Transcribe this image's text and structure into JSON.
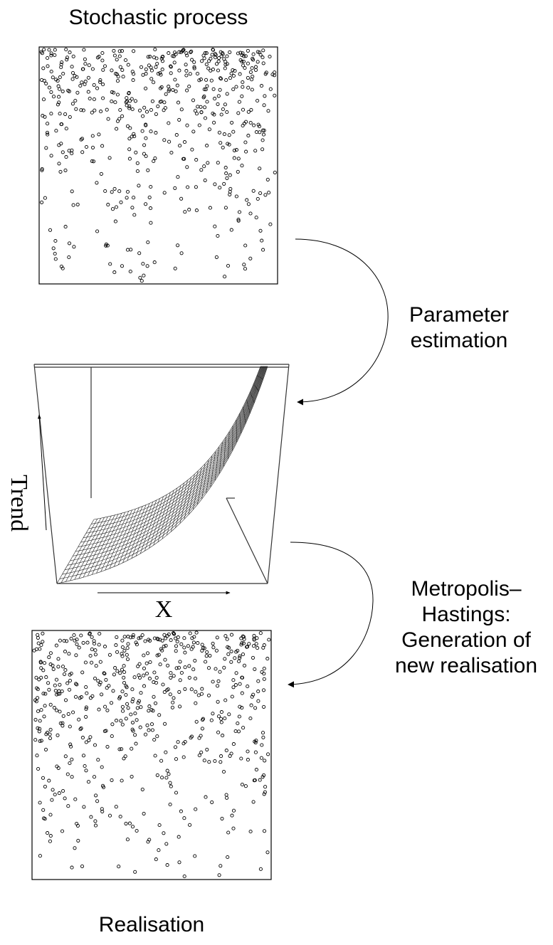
{
  "top_panel": {
    "title": "Stochastic process"
  },
  "bottom_panel": {
    "title": "Realisation"
  },
  "arrow_1": {
    "line1": "Parameter",
    "line2": "estimation"
  },
  "arrow_2": {
    "line1": "Metropolis–",
    "line2": "Hastings:",
    "line3": "Generation of",
    "line4": "new realisation"
  },
  "surface": {
    "z_label": "Trend",
    "x_label": "X"
  },
  "colors": {
    "ink": "#000000",
    "background": "#ffffff",
    "frame": "#333333"
  }
}
